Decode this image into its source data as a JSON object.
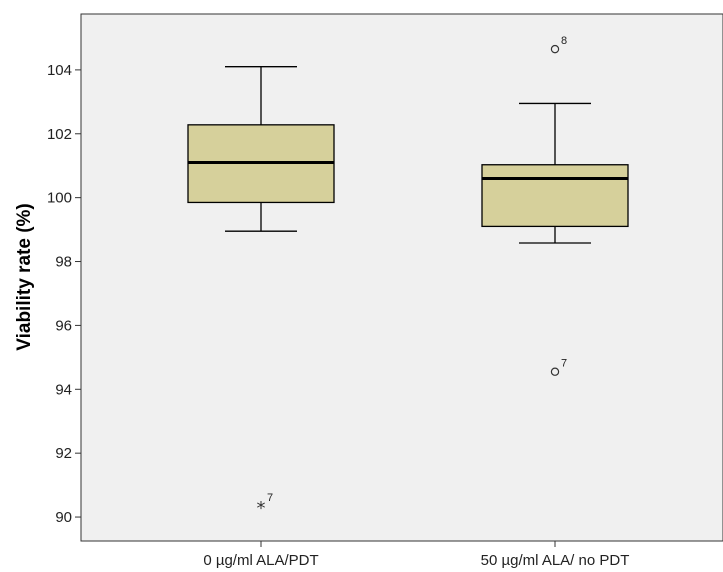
{
  "chart_data": {
    "type": "boxplot",
    "ylabel": "Viability rate (%)",
    "ylim": [
      89.25,
      105.75
    ],
    "yticks": [
      90,
      92,
      94,
      96,
      98,
      100,
      102,
      104
    ],
    "grid": false,
    "colors": {
      "plot_background": "#f0f0f0",
      "box_fill": "#d6d09b",
      "stroke": "#000000"
    },
    "categories": [
      "0 µg/ml ALA/PDT",
      "50 µg/ml ALA/ no PDT"
    ],
    "boxes": [
      {
        "category": "0 µg/ml ALA/PDT",
        "whisker_low": 98.95,
        "q1": 99.85,
        "median": 101.1,
        "q3": 102.28,
        "whisker_high": 104.1,
        "outliers": [
          {
            "value": 90.35,
            "label": "7",
            "marker": "star"
          }
        ]
      },
      {
        "category": "50 µg/ml ALA/ no PDT",
        "whisker_low": 98.58,
        "q1": 99.1,
        "median": 100.6,
        "q3": 101.03,
        "whisker_high": 102.95,
        "outliers": [
          {
            "value": 104.65,
            "label": "8",
            "marker": "circle"
          },
          {
            "value": 94.55,
            "label": "7",
            "marker": "circle"
          }
        ]
      }
    ]
  }
}
